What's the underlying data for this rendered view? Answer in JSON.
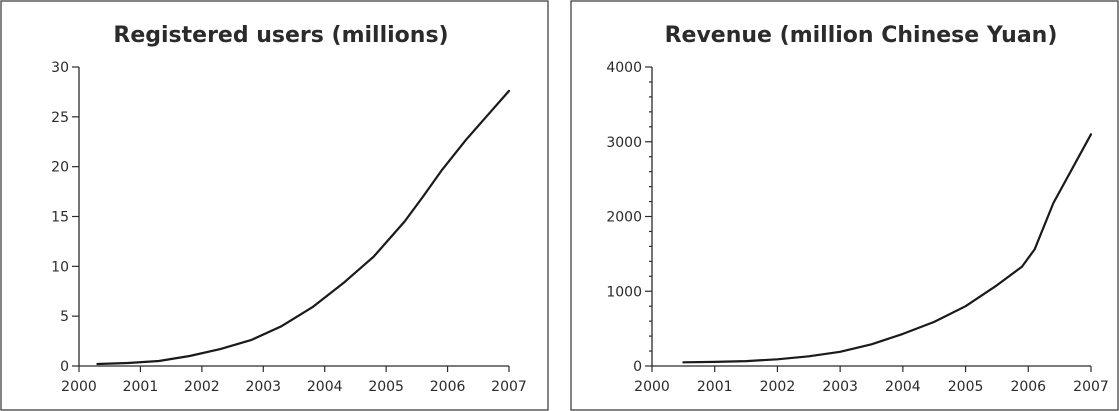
{
  "chart_data": [
    {
      "type": "line",
      "title": "Registered users (millions)",
      "xlabel": "",
      "ylabel": "",
      "xlim": [
        2000,
        2007
      ],
      "ylim": [
        0,
        30
      ],
      "grid": false,
      "x_ticks": [
        "2000",
        "2001",
        "2002",
        "2003",
        "2004",
        "2005",
        "2006",
        "2007"
      ],
      "y_ticks": [
        "0",
        "5",
        "10",
        "15",
        "20",
        "25",
        "30"
      ],
      "series": [
        {
          "x": [
            2000.3,
            2000.8,
            2001.3,
            2001.8,
            2002.3,
            2002.8,
            2003.3,
            2003.8,
            2004.3,
            2004.8,
            2005.3,
            2005.6,
            2005.9,
            2006.3,
            2006.7,
            2007.0
          ],
          "y": [
            0.2,
            0.3,
            0.5,
            1.0,
            1.7,
            2.6,
            4.0,
            5.9,
            8.3,
            11.0,
            14.5,
            17.0,
            19.6,
            22.7,
            25.5,
            27.6
          ]
        }
      ]
    },
    {
      "type": "line",
      "title": "Revenue (million Chinese Yuan)",
      "xlabel": "",
      "ylabel": "",
      "xlim": [
        2000,
        2007
      ],
      "ylim": [
        0,
        4000
      ],
      "grid": false,
      "x_ticks": [
        "2000",
        "2001",
        "2002",
        "2003",
        "2004",
        "2005",
        "2006",
        "2007"
      ],
      "y_ticks": [
        "0",
        "1000",
        "2000",
        "3000",
        "4000"
      ],
      "series": [
        {
          "x": [
            2000.5,
            2001.0,
            2001.5,
            2002.0,
            2002.5,
            2003.0,
            2003.5,
            2004.0,
            2004.5,
            2005.0,
            2005.5,
            2005.9,
            2006.1,
            2006.4,
            2006.7,
            2007.0
          ],
          "y": [
            50,
            55,
            65,
            90,
            130,
            190,
            290,
            430,
            590,
            800,
            1080,
            1330,
            1560,
            2180,
            2640,
            3100
          ]
        }
      ]
    }
  ]
}
